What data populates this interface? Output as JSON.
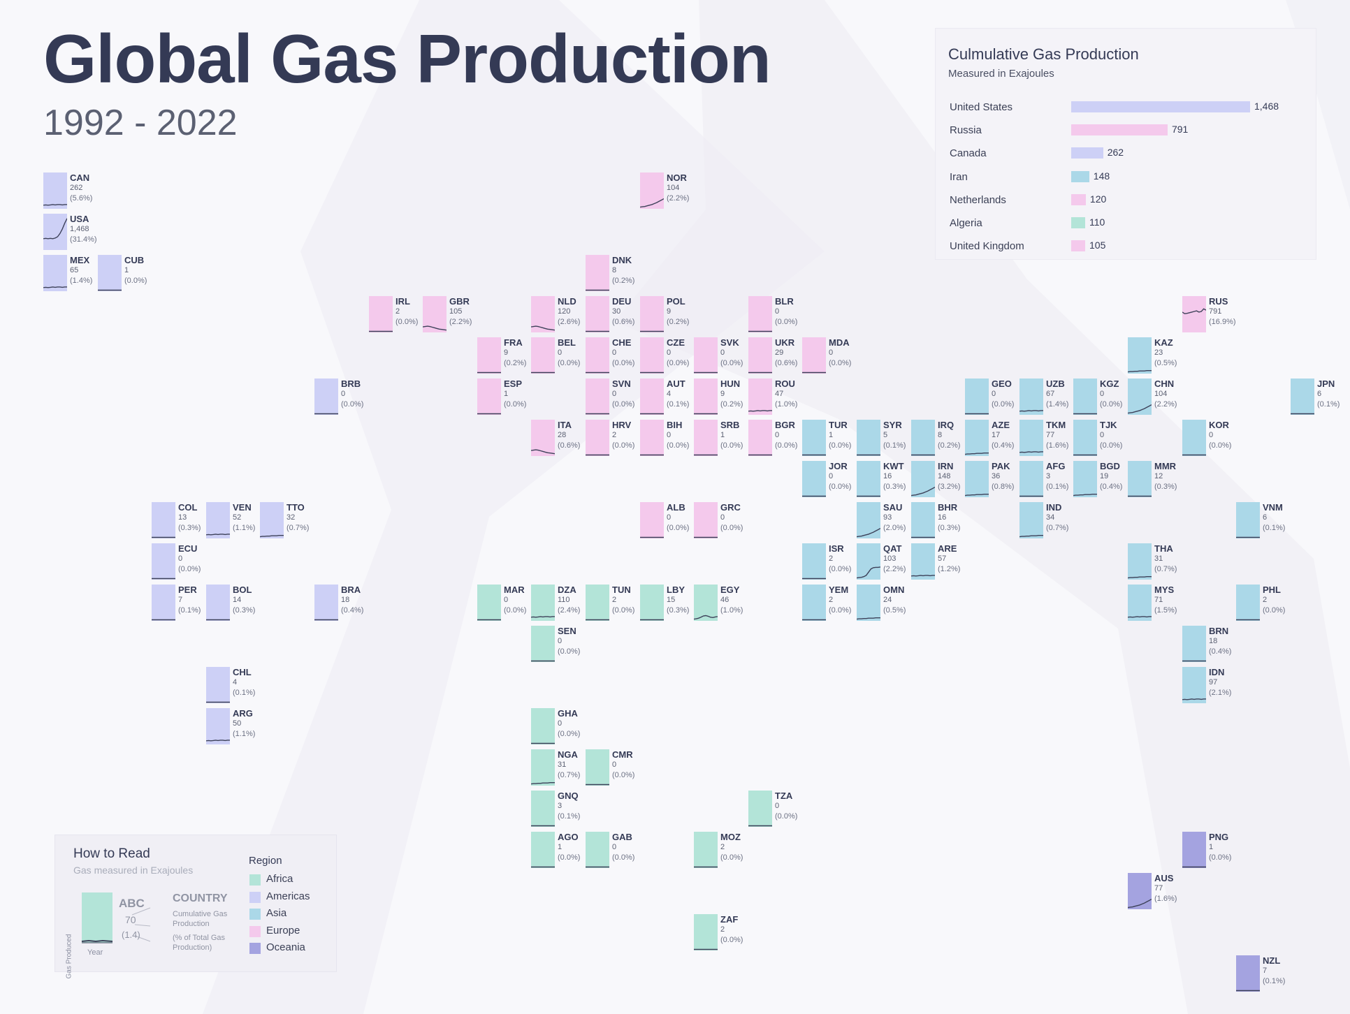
{
  "header": {
    "title": "Global Gas Production",
    "subtitle": "1992 - 2022"
  },
  "colors": {
    "Africa": "#b3e4d8",
    "Americas": "#cdd0f6",
    "Asia": "#abd8e8",
    "Europe": "#f4c9ec",
    "Oceania": "#a4a3e0",
    "line": "#3d4159"
  },
  "top_panel": {
    "title": "Culmulative Gas Production",
    "subtitle": "Measured in Exajoules",
    "items": [
      {
        "name": "United States",
        "value": 1468,
        "label": "1,468",
        "region": "Americas"
      },
      {
        "name": "Russia",
        "value": 791,
        "label": "791",
        "region": "Europe"
      },
      {
        "name": "Canada",
        "value": 262,
        "label": "262",
        "region": "Americas"
      },
      {
        "name": "Iran",
        "value": 148,
        "label": "148",
        "region": "Asia"
      },
      {
        "name": "Netherlands",
        "value": 120,
        "label": "120",
        "region": "Europe"
      },
      {
        "name": "Algeria",
        "value": 110,
        "label": "110",
        "region": "Africa"
      },
      {
        "name": "United Kingdom",
        "value": 105,
        "label": "105",
        "region": "Europe"
      }
    ]
  },
  "how_to_read": {
    "title": "How to Read",
    "subtitle": "Gas measured in Exajoules",
    "example_code": "ABC",
    "example_value": "70",
    "example_pct": "(1.4)",
    "label_country": "COUNTRY",
    "label_cumulative": "Cumulative Gas Production",
    "label_pct": "(% of Total Gas Production)",
    "axis_y": "Gas Produced",
    "axis_x": "Year"
  },
  "legend": {
    "title": "Region",
    "items": [
      "Africa",
      "Americas",
      "Asia",
      "Europe",
      "Oceania"
    ]
  },
  "chart_data": {
    "type": "tile-map-sparklines",
    "title": "Global Gas Production",
    "subtitle": "1992 - 2022",
    "x_range": [
      1992,
      2022
    ],
    "unit": "Exajoules",
    "countries": [
      {
        "code": "CAN",
        "value": "262",
        "pct": "(5.6%)",
        "region": "Americas",
        "col": 0,
        "row": 0,
        "spark": "flat"
      },
      {
        "code": "USA",
        "value": "1,468",
        "pct": "(31.4%)",
        "region": "Americas",
        "col": 0,
        "row": 1,
        "spark": "usa"
      },
      {
        "code": "MEX",
        "value": "65",
        "pct": "(1.4%)",
        "region": "Americas",
        "col": 0,
        "row": 2,
        "spark": "flat"
      },
      {
        "code": "CUB",
        "value": "1",
        "pct": "(0.0%)",
        "region": "Americas",
        "col": 1,
        "row": 2,
        "spark": "zero"
      },
      {
        "code": "NOR",
        "value": "104",
        "pct": "(2.2%)",
        "region": "Europe",
        "col": 11,
        "row": 0,
        "spark": "rise"
      },
      {
        "code": "DNK",
        "value": "8",
        "pct": "(0.2%)",
        "region": "Europe",
        "col": 10,
        "row": 2,
        "spark": "zero"
      },
      {
        "code": "IRL",
        "value": "2",
        "pct": "(0.0%)",
        "region": "Europe",
        "col": 6,
        "row": 3,
        "spark": "zero"
      },
      {
        "code": "GBR",
        "value": "105",
        "pct": "(2.2%)",
        "region": "Europe",
        "col": 7,
        "row": 3,
        "spark": "fall"
      },
      {
        "code": "NLD",
        "value": "120",
        "pct": "(2.6%)",
        "region": "Europe",
        "col": 9,
        "row": 3,
        "spark": "fall"
      },
      {
        "code": "DEU",
        "value": "30",
        "pct": "(0.6%)",
        "region": "Europe",
        "col": 10,
        "row": 3,
        "spark": "zero"
      },
      {
        "code": "POL",
        "value": "9",
        "pct": "(0.2%)",
        "region": "Europe",
        "col": 11,
        "row": 3,
        "spark": "zero"
      },
      {
        "code": "BLR",
        "value": "0",
        "pct": "(0.0%)",
        "region": "Europe",
        "col": 13,
        "row": 3,
        "spark": "zero"
      },
      {
        "code": "RUS",
        "value": "791",
        "pct": "(16.9%)",
        "region": "Europe",
        "col": 21,
        "row": 3,
        "spark": "rus"
      },
      {
        "code": "FRA",
        "value": "9",
        "pct": "(0.2%)",
        "region": "Europe",
        "col": 8,
        "row": 4,
        "spark": "zero"
      },
      {
        "code": "BEL",
        "value": "0",
        "pct": "(0.0%)",
        "region": "Europe",
        "col": 9,
        "row": 4,
        "spark": "zero"
      },
      {
        "code": "CHE",
        "value": "0",
        "pct": "(0.0%)",
        "region": "Europe",
        "col": 10,
        "row": 4,
        "spark": "zero"
      },
      {
        "code": "CZE",
        "value": "0",
        "pct": "(0.0%)",
        "region": "Europe",
        "col": 11,
        "row": 4,
        "spark": "zero"
      },
      {
        "code": "SVK",
        "value": "0",
        "pct": "(0.0%)",
        "region": "Europe",
        "col": 12,
        "row": 4,
        "spark": "zero"
      },
      {
        "code": "UKR",
        "value": "29",
        "pct": "(0.6%)",
        "region": "Europe",
        "col": 13,
        "row": 4,
        "spark": "zero"
      },
      {
        "code": "MDA",
        "value": "0",
        "pct": "(0.0%)",
        "region": "Europe",
        "col": 14,
        "row": 4,
        "spark": "zero"
      },
      {
        "code": "KAZ",
        "value": "23",
        "pct": "(0.5%)",
        "region": "Asia",
        "col": 20,
        "row": 4,
        "spark": "low"
      },
      {
        "code": "BRB",
        "value": "0",
        "pct": "(0.0%)",
        "region": "Americas",
        "col": 5,
        "row": 5,
        "spark": "zero"
      },
      {
        "code": "ESP",
        "value": "1",
        "pct": "(0.0%)",
        "region": "Europe",
        "col": 8,
        "row": 5,
        "spark": "zero"
      },
      {
        "code": "SVN",
        "value": "0",
        "pct": "(0.0%)",
        "region": "Europe",
        "col": 10,
        "row": 5,
        "spark": "zero"
      },
      {
        "code": "AUT",
        "value": "4",
        "pct": "(0.1%)",
        "region": "Europe",
        "col": 11,
        "row": 5,
        "spark": "zero"
      },
      {
        "code": "HUN",
        "value": "9",
        "pct": "(0.2%)",
        "region": "Europe",
        "col": 12,
        "row": 5,
        "spark": "zero"
      },
      {
        "code": "ROU",
        "value": "47",
        "pct": "(1.0%)",
        "region": "Europe",
        "col": 13,
        "row": 5,
        "spark": "flat"
      },
      {
        "code": "GEO",
        "value": "0",
        "pct": "(0.0%)",
        "region": "Asia",
        "col": 17,
        "row": 5,
        "spark": "zero"
      },
      {
        "code": "UZB",
        "value": "67",
        "pct": "(1.4%)",
        "region": "Asia",
        "col": 18,
        "row": 5,
        "spark": "flat"
      },
      {
        "code": "KGZ",
        "value": "0",
        "pct": "(0.0%)",
        "region": "Asia",
        "col": 19,
        "row": 5,
        "spark": "zero"
      },
      {
        "code": "CHN",
        "value": "104",
        "pct": "(2.2%)",
        "region": "Asia",
        "col": 20,
        "row": 5,
        "spark": "rise"
      },
      {
        "code": "JPN",
        "value": "6",
        "pct": "(0.1%)",
        "region": "Asia",
        "col": 23,
        "row": 5,
        "spark": "zero"
      },
      {
        "code": "ITA",
        "value": "28",
        "pct": "(0.6%)",
        "region": "Europe",
        "col": 9,
        "row": 6,
        "spark": "fall"
      },
      {
        "code": "HRV",
        "value": "2",
        "pct": "(0.0%)",
        "region": "Europe",
        "col": 10,
        "row": 6,
        "spark": "zero"
      },
      {
        "code": "BIH",
        "value": "0",
        "pct": "(0.0%)",
        "region": "Europe",
        "col": 11,
        "row": 6,
        "spark": "zero"
      },
      {
        "code": "SRB",
        "value": "1",
        "pct": "(0.0%)",
        "region": "Europe",
        "col": 12,
        "row": 6,
        "spark": "zero"
      },
      {
        "code": "BGR",
        "value": "0",
        "pct": "(0.0%)",
        "region": "Europe",
        "col": 13,
        "row": 6,
        "spark": "zero"
      },
      {
        "code": "TUR",
        "value": "1",
        "pct": "(0.0%)",
        "region": "Asia",
        "col": 14,
        "row": 6,
        "spark": "zero"
      },
      {
        "code": "SYR",
        "value": "5",
        "pct": "(0.1%)",
        "region": "Asia",
        "col": 15,
        "row": 6,
        "spark": "zero"
      },
      {
        "code": "IRQ",
        "value": "8",
        "pct": "(0.2%)",
        "region": "Asia",
        "col": 16,
        "row": 6,
        "spark": "zero"
      },
      {
        "code": "AZE",
        "value": "17",
        "pct": "(0.4%)",
        "region": "Asia",
        "col": 17,
        "row": 6,
        "spark": "low"
      },
      {
        "code": "TKM",
        "value": "77",
        "pct": "(1.6%)",
        "region": "Asia",
        "col": 18,
        "row": 6,
        "spark": "flat"
      },
      {
        "code": "TJK",
        "value": "0",
        "pct": "(0.0%)",
        "region": "Asia",
        "col": 19,
        "row": 6,
        "spark": "zero"
      },
      {
        "code": "KOR",
        "value": "0",
        "pct": "(0.0%)",
        "region": "Asia",
        "col": 21,
        "row": 6,
        "spark": "zero"
      },
      {
        "code": "JOR",
        "value": "0",
        "pct": "(0.0%)",
        "region": "Asia",
        "col": 14,
        "row": 7,
        "spark": "zero"
      },
      {
        "code": "KWT",
        "value": "16",
        "pct": "(0.3%)",
        "region": "Asia",
        "col": 15,
        "row": 7,
        "spark": "zero"
      },
      {
        "code": "IRN",
        "value": "148",
        "pct": "(3.2%)",
        "region": "Asia",
        "col": 16,
        "row": 7,
        "spark": "rise"
      },
      {
        "code": "PAK",
        "value": "36",
        "pct": "(0.8%)",
        "region": "Asia",
        "col": 17,
        "row": 7,
        "spark": "low"
      },
      {
        "code": "AFG",
        "value": "3",
        "pct": "(0.1%)",
        "region": "Asia",
        "col": 18,
        "row": 7,
        "spark": "zero"
      },
      {
        "code": "BGD",
        "value": "19",
        "pct": "(0.4%)",
        "region": "Asia",
        "col": 19,
        "row": 7,
        "spark": "low"
      },
      {
        "code": "MMR",
        "value": "12",
        "pct": "(0.3%)",
        "region": "Asia",
        "col": 20,
        "row": 7,
        "spark": "zero"
      },
      {
        "code": "COL",
        "value": "13",
        "pct": "(0.3%)",
        "region": "Americas",
        "col": 2,
        "row": 8,
        "spark": "zero"
      },
      {
        "code": "VEN",
        "value": "52",
        "pct": "(1.1%)",
        "region": "Americas",
        "col": 3,
        "row": 8,
        "spark": "flat"
      },
      {
        "code": "TTO",
        "value": "32",
        "pct": "(0.7%)",
        "region": "Americas",
        "col": 4,
        "row": 8,
        "spark": "low"
      },
      {
        "code": "ALB",
        "value": "0",
        "pct": "(0.0%)",
        "region": "Europe",
        "col": 11,
        "row": 8,
        "spark": "zero"
      },
      {
        "code": "GRC",
        "value": "0",
        "pct": "(0.0%)",
        "region": "Europe",
        "col": 12,
        "row": 8,
        "spark": "zero"
      },
      {
        "code": "SAU",
        "value": "93",
        "pct": "(2.0%)",
        "region": "Asia",
        "col": 15,
        "row": 8,
        "spark": "rise"
      },
      {
        "code": "BHR",
        "value": "16",
        "pct": "(0.3%)",
        "region": "Asia",
        "col": 16,
        "row": 8,
        "spark": "zero"
      },
      {
        "code": "IND",
        "value": "34",
        "pct": "(0.7%)",
        "region": "Asia",
        "col": 18,
        "row": 8,
        "spark": "low"
      },
      {
        "code": "VNM",
        "value": "6",
        "pct": "(0.1%)",
        "region": "Asia",
        "col": 22,
        "row": 8,
        "spark": "zero"
      },
      {
        "code": "ECU",
        "value": "0",
        "pct": "(0.0%)",
        "region": "Americas",
        "col": 2,
        "row": 9,
        "spark": "zero"
      },
      {
        "code": "ISR",
        "value": "2",
        "pct": "(0.0%)",
        "region": "Asia",
        "col": 14,
        "row": 9,
        "spark": "zero"
      },
      {
        "code": "QAT",
        "value": "103",
        "pct": "(2.2%)",
        "region": "Asia",
        "col": 15,
        "row": 9,
        "spark": "qat"
      },
      {
        "code": "ARE",
        "value": "57",
        "pct": "(1.2%)",
        "region": "Asia",
        "col": 16,
        "row": 9,
        "spark": "flat"
      },
      {
        "code": "THA",
        "value": "31",
        "pct": "(0.7%)",
        "region": "Asia",
        "col": 20,
        "row": 9,
        "spark": "low"
      },
      {
        "code": "PER",
        "value": "7",
        "pct": "(0.1%)",
        "region": "Americas",
        "col": 2,
        "row": 10,
        "spark": "zero"
      },
      {
        "code": "BOL",
        "value": "14",
        "pct": "(0.3%)",
        "region": "Americas",
        "col": 3,
        "row": 10,
        "spark": "zero"
      },
      {
        "code": "BRA",
        "value": "18",
        "pct": "(0.4%)",
        "region": "Americas",
        "col": 5,
        "row": 10,
        "spark": "zero"
      },
      {
        "code": "MAR",
        "value": "0",
        "pct": "(0.0%)",
        "region": "Africa",
        "col": 8,
        "row": 10,
        "spark": "zero"
      },
      {
        "code": "DZA",
        "value": "110",
        "pct": "(2.4%)",
        "region": "Africa",
        "col": 9,
        "row": 10,
        "spark": "flat"
      },
      {
        "code": "TUN",
        "value": "2",
        "pct": "(0.0%)",
        "region": "Africa",
        "col": 10,
        "row": 10,
        "spark": "zero"
      },
      {
        "code": "LBY",
        "value": "15",
        "pct": "(0.3%)",
        "region": "Africa",
        "col": 11,
        "row": 10,
        "spark": "zero"
      },
      {
        "code": "EGY",
        "value": "46",
        "pct": "(1.0%)",
        "region": "Africa",
        "col": 12,
        "row": 10,
        "spark": "hump"
      },
      {
        "code": "YEM",
        "value": "2",
        "pct": "(0.0%)",
        "region": "Asia",
        "col": 14,
        "row": 10,
        "spark": "zero"
      },
      {
        "code": "OMN",
        "value": "24",
        "pct": "(0.5%)",
        "region": "Asia",
        "col": 15,
        "row": 10,
        "spark": "low"
      },
      {
        "code": "MYS",
        "value": "71",
        "pct": "(1.5%)",
        "region": "Asia",
        "col": 20,
        "row": 10,
        "spark": "flat"
      },
      {
        "code": "PHL",
        "value": "2",
        "pct": "(0.0%)",
        "region": "Asia",
        "col": 22,
        "row": 10,
        "spark": "zero"
      },
      {
        "code": "SEN",
        "value": "0",
        "pct": "(0.0%)",
        "region": "Africa",
        "col": 9,
        "row": 11,
        "spark": "zero"
      },
      {
        "code": "BRN",
        "value": "18",
        "pct": "(0.4%)",
        "region": "Asia",
        "col": 21,
        "row": 11,
        "spark": "zero"
      },
      {
        "code": "CHL",
        "value": "4",
        "pct": "(0.1%)",
        "region": "Americas",
        "col": 3,
        "row": 12,
        "spark": "zero"
      },
      {
        "code": "IDN",
        "value": "97",
        "pct": "(2.1%)",
        "region": "Asia",
        "col": 21,
        "row": 12,
        "spark": "flat"
      },
      {
        "code": "ARG",
        "value": "50",
        "pct": "(1.1%)",
        "region": "Americas",
        "col": 3,
        "row": 13,
        "spark": "flat"
      },
      {
        "code": "GHA",
        "value": "0",
        "pct": "(0.0%)",
        "region": "Africa",
        "col": 9,
        "row": 13,
        "spark": "zero"
      },
      {
        "code": "NGA",
        "value": "31",
        "pct": "(0.7%)",
        "region": "Africa",
        "col": 9,
        "row": 14,
        "spark": "low"
      },
      {
        "code": "CMR",
        "value": "0",
        "pct": "(0.0%)",
        "region": "Africa",
        "col": 10,
        "row": 14,
        "spark": "zero"
      },
      {
        "code": "GNQ",
        "value": "3",
        "pct": "(0.1%)",
        "region": "Africa",
        "col": 9,
        "row": 15,
        "spark": "zero"
      },
      {
        "code": "TZA",
        "value": "0",
        "pct": "(0.0%)",
        "region": "Africa",
        "col": 13,
        "row": 15,
        "spark": "zero"
      },
      {
        "code": "AGO",
        "value": "1",
        "pct": "(0.0%)",
        "region": "Africa",
        "col": 9,
        "row": 16,
        "spark": "zero"
      },
      {
        "code": "GAB",
        "value": "0",
        "pct": "(0.0%)",
        "region": "Africa",
        "col": 10,
        "row": 16,
        "spark": "zero"
      },
      {
        "code": "MOZ",
        "value": "2",
        "pct": "(0.0%)",
        "region": "Africa",
        "col": 12,
        "row": 16,
        "spark": "zero"
      },
      {
        "code": "PNG",
        "value": "1",
        "pct": "(0.0%)",
        "region": "Oceania",
        "col": 21,
        "row": 16,
        "spark": "zero"
      },
      {
        "code": "AUS",
        "value": "77",
        "pct": "(1.6%)",
        "region": "Oceania",
        "col": 20,
        "row": 17,
        "spark": "rise"
      },
      {
        "code": "ZAF",
        "value": "2",
        "pct": "(0.0%)",
        "region": "Africa",
        "col": 12,
        "row": 18,
        "spark": "zero"
      },
      {
        "code": "NZL",
        "value": "7",
        "pct": "(0.1%)",
        "region": "Oceania",
        "col": 22,
        "row": 19,
        "spark": "zero"
      }
    ]
  }
}
